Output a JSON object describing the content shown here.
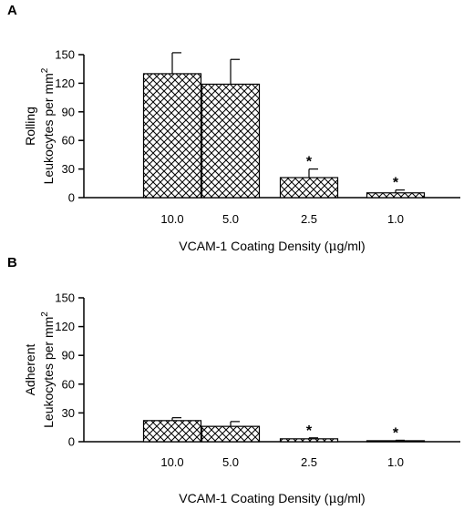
{
  "chart_data": [
    {
      "type": "bar",
      "panel_label": "A",
      "ylabel_line1": "Rolling",
      "ylabel_line2": "Leukocytes per mm",
      "ylabel_sup": "2",
      "xlabel_pre": "VCAM-1 Coating Density (",
      "xlabel_mu": "μ",
      "xlabel_post": "g/ml)",
      "ylim": [
        0,
        150
      ],
      "yticks": [
        0,
        30,
        60,
        90,
        120,
        150
      ],
      "categories": [
        "10.0",
        "5.0",
        "2.5",
        "1.0"
      ],
      "values": [
        130,
        119,
        21,
        5
      ],
      "errors": [
        22,
        26,
        9,
        3
      ],
      "significance": [
        "",
        "",
        "*",
        "*"
      ],
      "fill": "crosshatch"
    },
    {
      "type": "bar",
      "panel_label": "B",
      "ylabel_line1": "Adherent",
      "ylabel_line2": "Leukocytes per mm",
      "ylabel_sup": "2",
      "xlabel_pre": "VCAM-1 Coating Density (",
      "xlabel_mu": "μ",
      "xlabel_post": "g/ml)",
      "ylim": [
        0,
        150
      ],
      "yticks": [
        0,
        30,
        60,
        90,
        120,
        150
      ],
      "categories": [
        "10.0",
        "5.0",
        "2.5",
        "1.0"
      ],
      "values": [
        22,
        16,
        3,
        1
      ],
      "errors": [
        3,
        5,
        1,
        0.5
      ],
      "significance": [
        "",
        "",
        "*",
        "*"
      ],
      "fill": "crosshatch"
    }
  ]
}
